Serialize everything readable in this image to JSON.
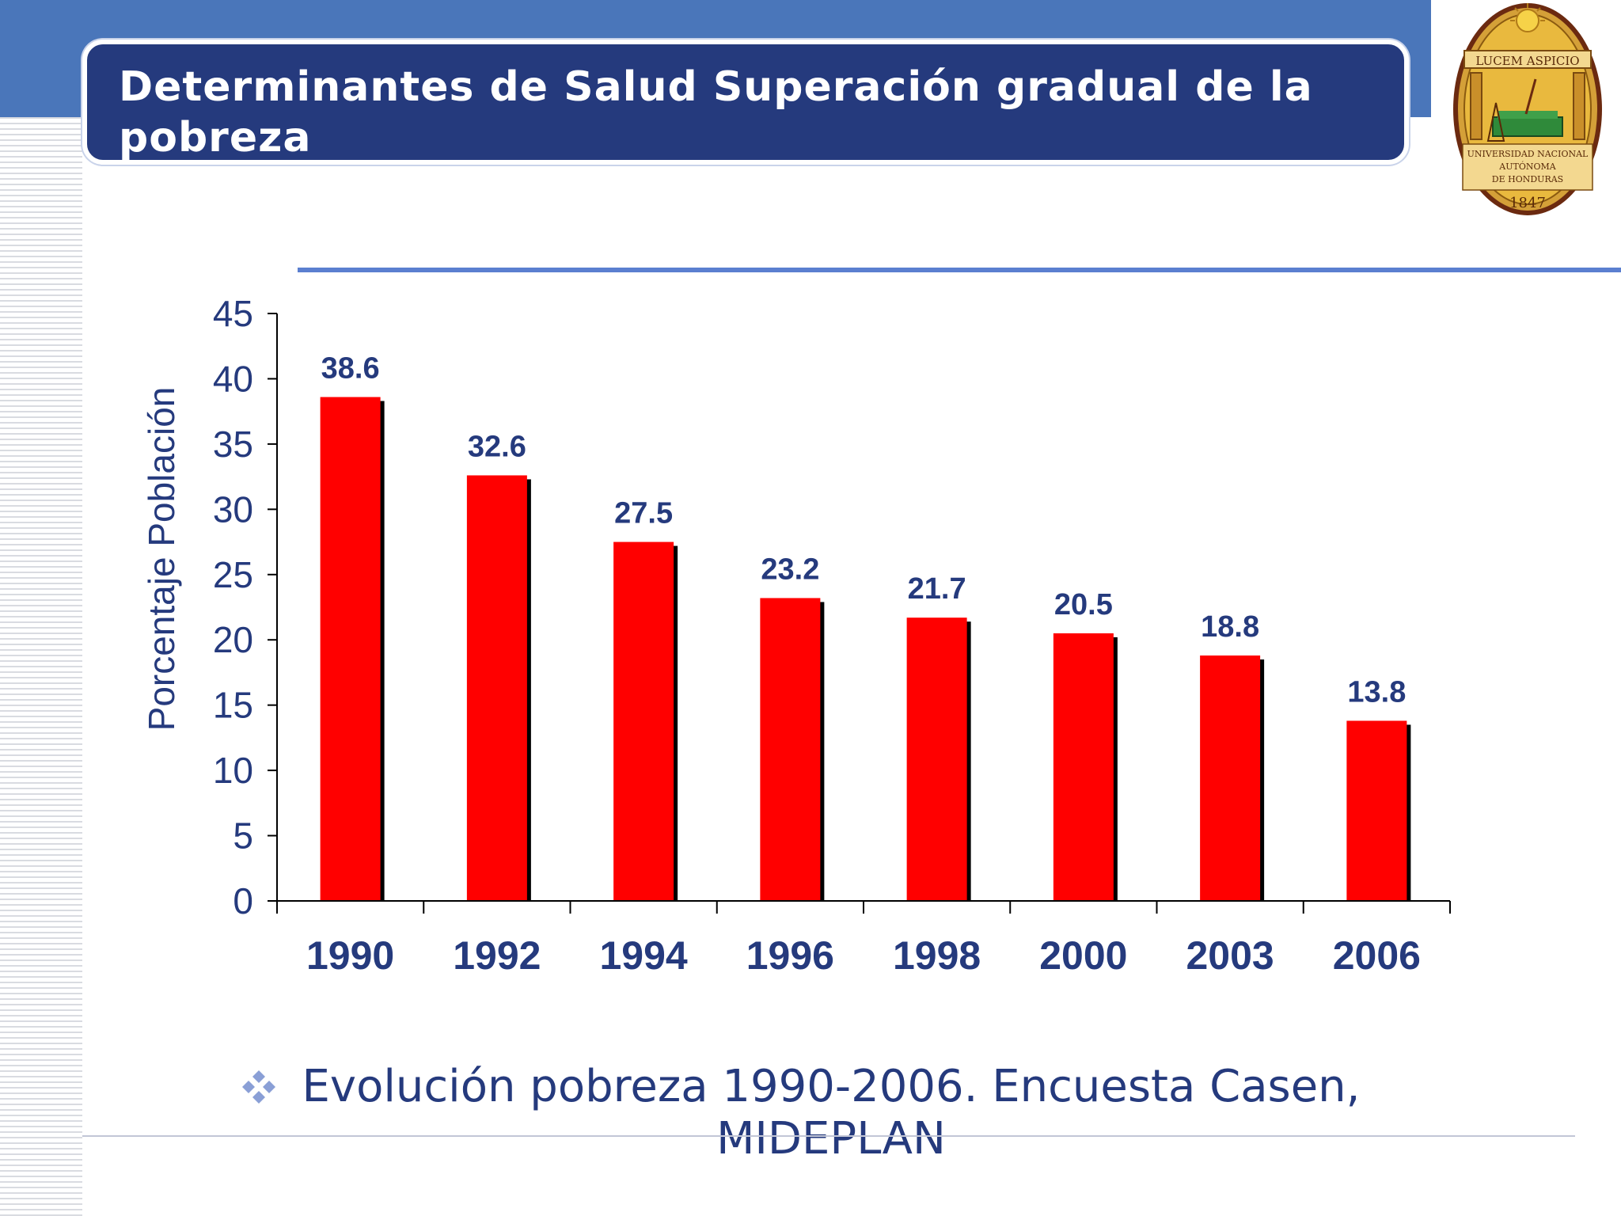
{
  "slide": {
    "title": "Determinantes de Salud Superación gradual de la pobreza",
    "caption": "Evolución pobreza 1990-2006. Encuesta Casen, MIDEPLAN",
    "logo": {
      "motto": "LUCEM ASPICIO",
      "line1": "UNIVERSIDAD NACIONAL",
      "line2": "AUTÓNOMA",
      "line3": "DE HONDURAS",
      "year": "1847"
    }
  },
  "colors": {
    "band": "#4a76ba",
    "title_bg": "#253a7d",
    "bar": "#ff0000",
    "bar_shadow": "#000000",
    "label": "#253a7d",
    "axis": "#000000"
  },
  "chart_data": {
    "type": "bar",
    "categories": [
      "1990",
      "1992",
      "1994",
      "1996",
      "1998",
      "2000",
      "2003",
      "2006"
    ],
    "values": [
      38.6,
      32.6,
      27.5,
      23.2,
      21.7,
      20.5,
      18.8,
      13.8
    ],
    "data_labels": [
      "38.6",
      "32.6",
      "27.5",
      "23.2",
      "21.7",
      "20.5",
      "18.8",
      "13.8"
    ],
    "xlabel": "",
    "ylabel": "Porcentaje Población",
    "ylim": [
      0,
      45
    ],
    "yticks": [
      0,
      5,
      10,
      15,
      20,
      25,
      30,
      35,
      40,
      45
    ],
    "grid": false,
    "legend": "none"
  }
}
